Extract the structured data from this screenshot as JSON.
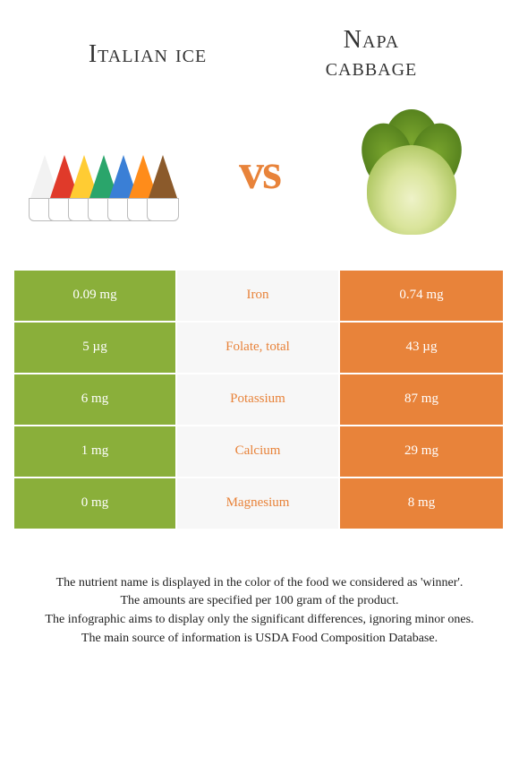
{
  "header": {
    "left_title": "Italian ice",
    "right_title_line1": "Napa",
    "right_title_line2": "cabbage"
  },
  "vs_label": "vs",
  "colors": {
    "loser_bg": "#8aaf3a",
    "winner_bg": "#e8833a",
    "mid_bg": "#f7f7f7",
    "text_light": "#ffffff",
    "nutrient_winner_text": "#e8833a"
  },
  "cone_colors": [
    "#f2f2f2",
    "#e03a2a",
    "#ffcc33",
    "#2aa56b",
    "#3a7fd6",
    "#ff8c1a",
    "#8b5a2b"
  ],
  "nutrients": [
    {
      "name": "Iron",
      "left": "0.09 mg",
      "right": "0.74 mg",
      "winner": "right"
    },
    {
      "name": "Folate, total",
      "left": "5 µg",
      "right": "43 µg",
      "winner": "right"
    },
    {
      "name": "Potassium",
      "left": "6 mg",
      "right": "87 mg",
      "winner": "right"
    },
    {
      "name": "Calcium",
      "left": "1 mg",
      "right": "29 mg",
      "winner": "right"
    },
    {
      "name": "Magnesium",
      "left": "0 mg",
      "right": "8 mg",
      "winner": "right"
    }
  ],
  "footnotes": [
    "The nutrient name is displayed in the color of the food we considered as 'winner'.",
    "The amounts are specified per 100 gram of the product.",
    "The infographic aims to display only the significant differences, ignoring minor ones.",
    "The main source of information is USDA Food Composition Database."
  ]
}
